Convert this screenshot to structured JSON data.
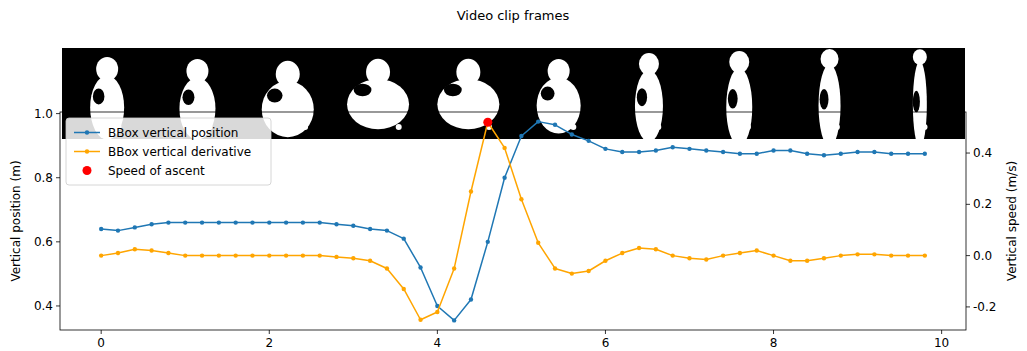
{
  "chart_data": {
    "type": "line",
    "title": "Video clip frames",
    "y_label": "Vertical position (m)",
    "y2_label": "Vertical speed (m/s)",
    "x": [
      0,
      0.2,
      0.4,
      0.6,
      0.8,
      1.0,
      1.2,
      1.4,
      1.6,
      1.8,
      2.0,
      2.2,
      2.4,
      2.6,
      2.8,
      3.0,
      3.2,
      3.4,
      3.6,
      3.8,
      4.0,
      4.2,
      4.4,
      4.6,
      4.8,
      5.0,
      5.2,
      5.4,
      5.6,
      5.8,
      6.0,
      6.2,
      6.4,
      6.6,
      6.8,
      7.0,
      7.2,
      7.4,
      7.6,
      7.8,
      8.0,
      8.2,
      8.4,
      8.6,
      8.8,
      9.0,
      9.2,
      9.4,
      9.6,
      9.8
    ],
    "xlim": [
      -0.49,
      10.29
    ],
    "xticks": [
      0,
      2,
      4,
      6,
      8,
      10
    ],
    "ylim": [
      0.325,
      1.005
    ],
    "yticks": [
      0.4,
      0.6,
      0.8,
      {
        "value": 1.0,
        "label": "1.0"
      }
    ],
    "y2lim": [
      -0.29,
      0.56
    ],
    "y2ticks": [
      -0.2,
      {
        "value": 0,
        "label": "0.0"
      },
      0.2,
      0.4
    ],
    "legend": "upper left",
    "grid": false,
    "series": [
      {
        "name": "BBox vertical position",
        "color": "#1f77b4",
        "marker": "circle",
        "values": [
          0.64,
          0.635,
          0.645,
          0.655,
          0.66,
          0.66,
          0.66,
          0.66,
          0.66,
          0.66,
          0.66,
          0.66,
          0.66,
          0.66,
          0.655,
          0.65,
          0.64,
          0.635,
          0.61,
          0.52,
          0.4,
          0.355,
          0.42,
          0.6,
          0.8,
          0.93,
          0.975,
          0.965,
          0.935,
          0.915,
          0.89,
          0.88,
          0.88,
          0.885,
          0.895,
          0.89,
          0.885,
          0.88,
          0.875,
          0.875,
          0.885,
          0.885,
          0.875,
          0.87,
          0.875,
          0.88,
          0.88,
          0.875,
          0.875,
          0.875
        ]
      },
      {
        "name": "BBox vertical derivative",
        "color": "#ffa500",
        "marker": "circle",
        "axis": "y2",
        "values": [
          0,
          0.01,
          0.025,
          0.02,
          0.01,
          0,
          0,
          0,
          0,
          0,
          0,
          0,
          0,
          0,
          -0.005,
          -0.01,
          -0.02,
          -0.05,
          -0.13,
          -0.25,
          -0.22,
          -0.05,
          0.25,
          0.52,
          0.42,
          0.22,
          0.05,
          -0.05,
          -0.07,
          -0.06,
          -0.02,
          0.01,
          0.03,
          0.025,
          0,
          -0.01,
          -0.015,
          0,
          0.01,
          0.02,
          0,
          -0.02,
          -0.02,
          -0.01,
          0,
          0.005,
          0.005,
          0,
          0,
          0
        ]
      },
      {
        "name": "Speed of ascent",
        "type": "scatter",
        "color": "#ff0000",
        "marker": "circle",
        "axis": "y2",
        "x": [
          4.6
        ],
        "values": [
          0.52
        ]
      }
    ]
  }
}
